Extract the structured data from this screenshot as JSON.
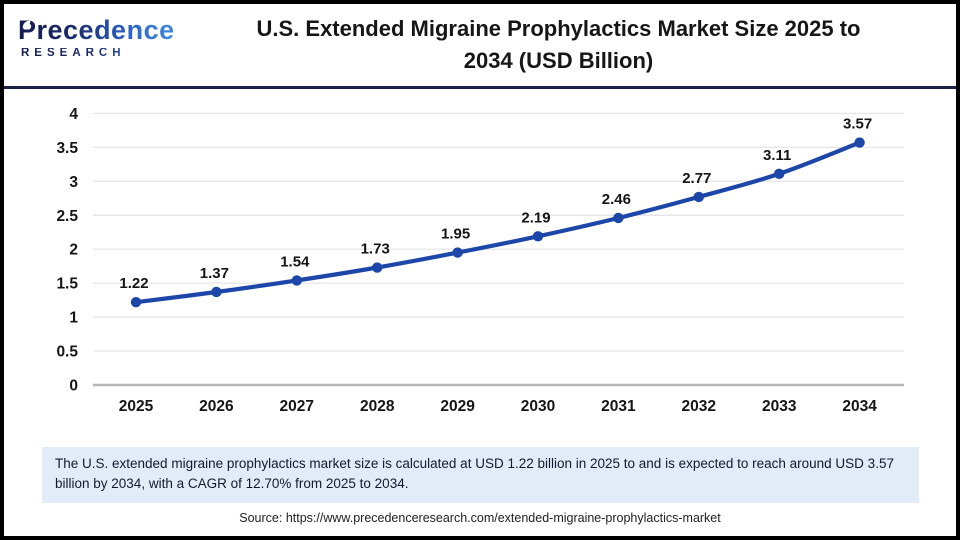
{
  "logo": {
    "name": "Precedence",
    "subname": "RESEARCH"
  },
  "header": {
    "title_line1": "U.S. Extended Migraine Prophylactics Market Size 2025 to",
    "title_line2": "2034 (USD Billion)"
  },
  "chart_data": {
    "type": "line",
    "title": "U.S. Extended Migraine Prophylactics Market Size 2025 to 2034 (USD Billion)",
    "categories": [
      "2025",
      "2026",
      "2027",
      "2028",
      "2029",
      "2030",
      "2031",
      "2032",
      "2033",
      "2034"
    ],
    "values": [
      1.22,
      1.37,
      1.54,
      1.73,
      1.95,
      2.19,
      2.46,
      2.77,
      3.11,
      3.57
    ],
    "data_labels": [
      "1.22",
      "1.37",
      "1.54",
      "1.73",
      "1.95",
      "2.19",
      "2.46",
      "2.77",
      "3.11",
      "3.57"
    ],
    "xlabel": "",
    "ylabel": "",
    "ylim": [
      0,
      4
    ],
    "y_ticks": [
      "0",
      "0.5",
      "1",
      "1.5",
      "2",
      "2.5",
      "3",
      "3.5",
      "4"
    ],
    "grid": true,
    "legend": "none",
    "line_color": "#1c47a8",
    "marker_color": "#1c47a8",
    "grid_color": "#e7e7e7",
    "baseline_color": "#b5b5b5",
    "label_color": "#151515"
  },
  "note": {
    "text": "The U.S. extended migraine prophylactics market size is calculated at USD 1.22 billion in 2025 to and is expected to reach around USD 3.57 billion by 2034, with a CAGR of 12.70% from 2025 to 2034."
  },
  "source": {
    "text": "Source: https://www.precedenceresearch.com/extended-migraine-prophylactics-market"
  }
}
